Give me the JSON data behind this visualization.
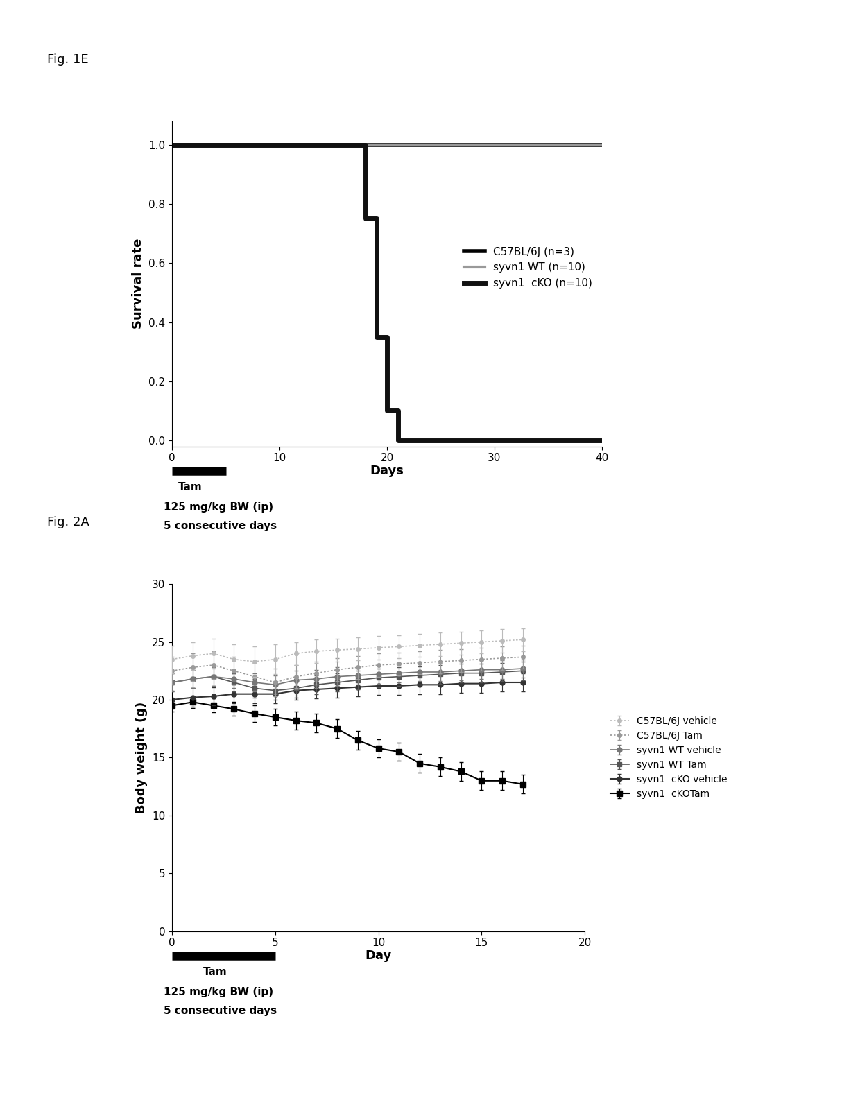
{
  "fig_label_1": "Fig. 1E",
  "fig_label_2": "Fig. 2A",
  "panel1": {
    "ylabel": "Survival rate",
    "xlabel": "Days",
    "xlim": [
      0,
      40
    ],
    "ylim": [
      -0.02,
      1.08
    ],
    "yticks": [
      0.0,
      0.2,
      0.4,
      0.6,
      0.8,
      1.0
    ],
    "xticks": [
      0,
      10,
      20,
      30,
      40
    ],
    "curves": [
      {
        "label": "C57BL/6J (n=3)",
        "color": "#000000",
        "linewidth": 4.0,
        "x": [
          0,
          40
        ],
        "y": [
          1.0,
          1.0
        ]
      },
      {
        "label": "syvn1 WT (n=10)",
        "color": "#999999",
        "linewidth": 3.0,
        "x": [
          0,
          40
        ],
        "y": [
          1.0,
          1.0
        ]
      },
      {
        "label": "syvn1  cKO (n=10)",
        "color": "#111111",
        "linewidth": 5.0,
        "x": [
          0,
          18,
          18,
          19,
          19,
          20,
          20,
          21,
          21,
          40
        ],
        "y": [
          1.0,
          1.0,
          0.75,
          0.75,
          0.35,
          0.35,
          0.1,
          0.1,
          0.0,
          0.0
        ]
      }
    ]
  },
  "panel2": {
    "ylabel": "Body weight (g)",
    "xlabel": "Day",
    "xlim": [
      0,
      20
    ],
    "ylim": [
      0.0,
      30.0
    ],
    "yticks": [
      0.0,
      5.0,
      10.0,
      15.0,
      20.0,
      25.0,
      30.0
    ],
    "xticks": [
      0,
      5,
      10,
      15,
      20
    ],
    "series": [
      {
        "label": "C57BL/6J vehicle",
        "color": "#bbbbbb",
        "linewidth": 1.2,
        "linestyle": "dotted",
        "marker": "o",
        "markersize": 4,
        "x": [
          0,
          1,
          2,
          3,
          4,
          5,
          6,
          7,
          8,
          9,
          10,
          11,
          12,
          13,
          14,
          15,
          16,
          17
        ],
        "y": [
          23.5,
          23.8,
          24.0,
          23.5,
          23.3,
          23.5,
          24.0,
          24.2,
          24.3,
          24.4,
          24.5,
          24.6,
          24.7,
          24.8,
          24.9,
          25.0,
          25.1,
          25.2
        ],
        "yerr": [
          1.2,
          1.2,
          1.3,
          1.3,
          1.3,
          1.3,
          1.0,
          1.0,
          1.0,
          1.0,
          1.0,
          1.0,
          1.0,
          1.0,
          1.0,
          1.0,
          1.0,
          1.0
        ]
      },
      {
        "label": "C57BL/6J Tam",
        "color": "#999999",
        "linewidth": 1.2,
        "linestyle": "dotted",
        "marker": "o",
        "markersize": 4,
        "x": [
          0,
          1,
          2,
          3,
          4,
          5,
          6,
          7,
          8,
          9,
          10,
          11,
          12,
          13,
          14,
          15,
          16,
          17
        ],
        "y": [
          22.5,
          22.8,
          23.0,
          22.5,
          22.0,
          21.5,
          22.0,
          22.3,
          22.6,
          22.8,
          23.0,
          23.1,
          23.2,
          23.3,
          23.4,
          23.5,
          23.6,
          23.7
        ],
        "yerr": [
          1.2,
          1.2,
          1.2,
          1.2,
          1.2,
          1.2,
          1.0,
          1.0,
          1.0,
          1.0,
          1.0,
          1.0,
          1.0,
          1.0,
          1.0,
          1.0,
          1.0,
          1.0
        ]
      },
      {
        "label": "syvn1 WT vehicle",
        "color": "#777777",
        "linewidth": 1.2,
        "linestyle": "solid",
        "marker": "o",
        "markersize": 5,
        "x": [
          0,
          1,
          2,
          3,
          4,
          5,
          6,
          7,
          8,
          9,
          10,
          11,
          12,
          13,
          14,
          15,
          16,
          17
        ],
        "y": [
          21.5,
          21.8,
          22.0,
          21.8,
          21.5,
          21.3,
          21.7,
          21.8,
          22.0,
          22.1,
          22.2,
          22.3,
          22.4,
          22.4,
          22.5,
          22.6,
          22.6,
          22.7
        ],
        "yerr": [
          0.8,
          0.8,
          0.8,
          0.8,
          0.8,
          0.8,
          0.8,
          0.8,
          0.8,
          0.8,
          0.8,
          0.8,
          0.8,
          0.8,
          0.8,
          0.8,
          0.8,
          0.8
        ]
      },
      {
        "label": "syvn1 WT Tam",
        "color": "#555555",
        "linewidth": 1.2,
        "linestyle": "solid",
        "marker": "s",
        "markersize": 5,
        "x": [
          0,
          1,
          2,
          3,
          4,
          5,
          6,
          7,
          8,
          9,
          10,
          11,
          12,
          13,
          14,
          15,
          16,
          17
        ],
        "y": [
          21.5,
          21.8,
          22.0,
          21.5,
          21.0,
          20.8,
          21.0,
          21.3,
          21.5,
          21.7,
          21.9,
          22.0,
          22.1,
          22.2,
          22.3,
          22.3,
          22.4,
          22.5
        ],
        "yerr": [
          0.8,
          0.8,
          0.8,
          0.8,
          0.8,
          0.8,
          0.8,
          0.8,
          0.8,
          0.8,
          0.8,
          0.8,
          0.8,
          0.8,
          0.8,
          0.8,
          0.8,
          0.8
        ]
      },
      {
        "label": "syvn1  cKO vehicle",
        "color": "#333333",
        "linewidth": 1.5,
        "linestyle": "solid",
        "marker": "o",
        "markersize": 5,
        "x": [
          0,
          1,
          2,
          3,
          4,
          5,
          6,
          7,
          8,
          9,
          10,
          11,
          12,
          13,
          14,
          15,
          16,
          17
        ],
        "y": [
          20.0,
          20.2,
          20.3,
          20.5,
          20.5,
          20.5,
          20.8,
          20.9,
          21.0,
          21.1,
          21.2,
          21.2,
          21.3,
          21.3,
          21.4,
          21.4,
          21.5,
          21.5
        ],
        "yerr": [
          0.8,
          0.8,
          0.8,
          0.8,
          0.8,
          0.8,
          0.8,
          0.8,
          0.8,
          0.8,
          0.8,
          0.8,
          0.8,
          0.8,
          0.8,
          0.8,
          0.8,
          0.8
        ]
      },
      {
        "label": "syvn1  cKOTam",
        "color": "#000000",
        "linewidth": 1.5,
        "linestyle": "solid",
        "marker": "s",
        "markersize": 6,
        "x": [
          0,
          1,
          2,
          3,
          4,
          5,
          6,
          7,
          8,
          9,
          10,
          11,
          12,
          13,
          14,
          15,
          16,
          17
        ],
        "y": [
          19.5,
          19.8,
          19.5,
          19.2,
          18.8,
          18.5,
          18.2,
          18.0,
          17.5,
          16.5,
          15.8,
          15.5,
          14.5,
          14.2,
          13.8,
          13.0,
          13.0,
          12.7
        ],
        "yerr": [
          0.5,
          0.5,
          0.6,
          0.6,
          0.7,
          0.7,
          0.8,
          0.8,
          0.8,
          0.8,
          0.8,
          0.8,
          0.8,
          0.8,
          0.8,
          0.8,
          0.8,
          0.8
        ]
      }
    ]
  }
}
